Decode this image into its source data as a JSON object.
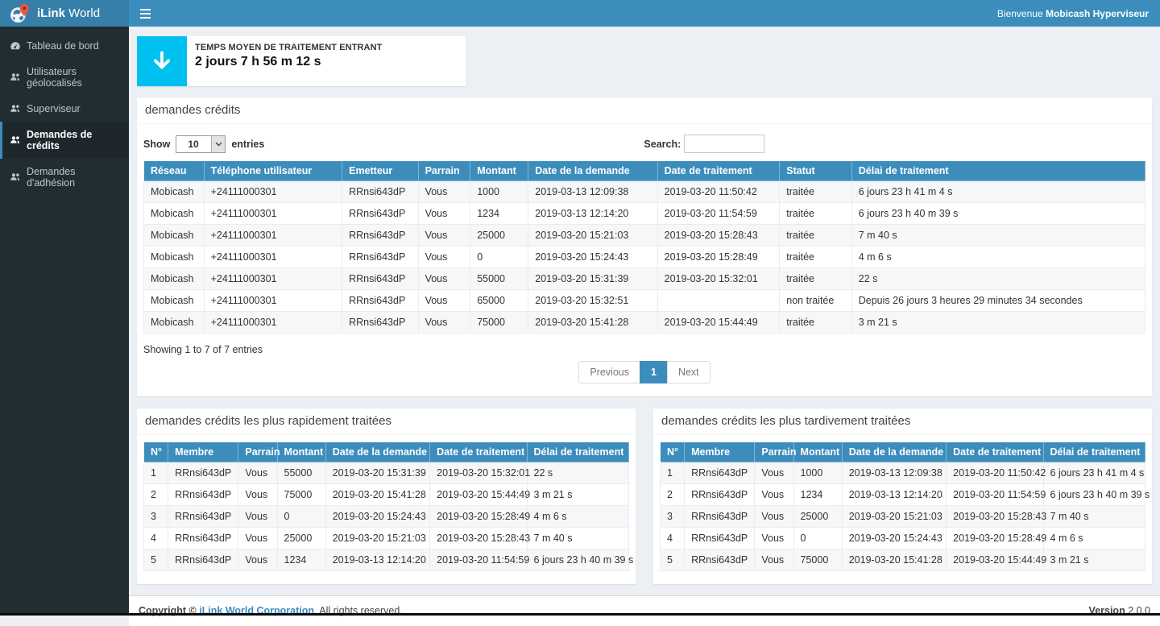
{
  "colors": {
    "navbar": "#3c8dbc",
    "logo_bg": "#367fa9",
    "sidebar_bg": "#222d32",
    "info_icon_bg": "#00c0ef",
    "table_header_bg": "#3c8dbc",
    "pin_red": "#e8573f"
  },
  "brand": {
    "bold": "iLink",
    "light": " World",
    "logo_icon": "globe-pin-icon"
  },
  "navbar": {
    "menu_icon": "hamburger-icon",
    "welcome_prefix": "Bienvenue ",
    "welcome_user": "Mobicash Hyperviseur"
  },
  "sidebar": {
    "items": [
      {
        "label": "Tableau de bord",
        "icon": "dashboard-icon",
        "active": false
      },
      {
        "label": "Utilisateurs géolocalisés",
        "icon": "users-icon",
        "active": false
      },
      {
        "label": "Superviseur",
        "icon": "users-icon",
        "active": false
      },
      {
        "label": "Demandes de crédits",
        "icon": "users-icon",
        "active": true
      },
      {
        "label": "Demandes d'adhésion",
        "icon": "users-icon",
        "active": false
      }
    ]
  },
  "stat_card": {
    "icon": "arrow-down-icon",
    "title": "TEMPS MOYEN DE TRAITEMENT ENTRANT",
    "value": "2 jours 7 h 56 m 12 s"
  },
  "credits_panel": {
    "title": "demandes crédits",
    "show_label": "Show",
    "page_size": "10",
    "entries_label": "entries",
    "search_label": "Search:",
    "search_value": "",
    "columns": [
      "Réseau",
      "Téléphone utilisateur",
      "Emetteur",
      "Parrain",
      "Montant",
      "Date de la demande",
      "Date de traitement",
      "Statut",
      "Délai de traitement"
    ],
    "rows": [
      [
        "Mobicash",
        "+24111000301",
        "RRnsi643dP",
        "Vous",
        "1000",
        "2019-03-13 12:09:38",
        "2019-03-20 11:50:42",
        "traitée",
        "6 jours 23 h 41 m 4 s"
      ],
      [
        "Mobicash",
        "+24111000301",
        "RRnsi643dP",
        "Vous",
        "1234",
        "2019-03-13 12:14:20",
        "2019-03-20 11:54:59",
        "traitée",
        "6 jours 23 h 40 m 39 s"
      ],
      [
        "Mobicash",
        "+24111000301",
        "RRnsi643dP",
        "Vous",
        "25000",
        "2019-03-20 15:21:03",
        "2019-03-20 15:28:43",
        "traitée",
        "7 m 40 s"
      ],
      [
        "Mobicash",
        "+24111000301",
        "RRnsi643dP",
        "Vous",
        "0",
        "2019-03-20 15:24:43",
        "2019-03-20 15:28:49",
        "traitée",
        "4 m 6 s"
      ],
      [
        "Mobicash",
        "+24111000301",
        "RRnsi643dP",
        "Vous",
        "55000",
        "2019-03-20 15:31:39",
        "2019-03-20 15:32:01",
        "traitée",
        "22 s"
      ],
      [
        "Mobicash",
        "+24111000301",
        "RRnsi643dP",
        "Vous",
        "65000",
        "2019-03-20 15:32:51",
        "",
        "non traitée",
        "Depuis 26 jours 3 heures 29 minutes 34 secondes"
      ],
      [
        "Mobicash",
        "+24111000301",
        "RRnsi643dP",
        "Vous",
        "75000",
        "2019-03-20 15:41:28",
        "2019-03-20 15:44:49",
        "traitée",
        "3 m 21 s"
      ]
    ],
    "info": "Showing 1 to 7 of 7 entries",
    "pagination": {
      "previous": "Previous",
      "page": "1",
      "next": "Next"
    }
  },
  "fastest_panel": {
    "title": "demandes crédits les plus rapidement traitées",
    "columns": [
      "N°",
      "Membre",
      "Parrain",
      "Montant",
      "Date de la demande",
      "Date de traitement",
      "Délai de traitement"
    ],
    "rows": [
      [
        "1",
        "RRnsi643dP",
        "Vous",
        "55000",
        "2019-03-20 15:31:39",
        "2019-03-20 15:32:01",
        "22 s"
      ],
      [
        "2",
        "RRnsi643dP",
        "Vous",
        "75000",
        "2019-03-20 15:41:28",
        "2019-03-20 15:44:49",
        "3 m 21 s"
      ],
      [
        "3",
        "RRnsi643dP",
        "Vous",
        "0",
        "2019-03-20 15:24:43",
        "2019-03-20 15:28:49",
        "4 m 6 s"
      ],
      [
        "4",
        "RRnsi643dP",
        "Vous",
        "25000",
        "2019-03-20 15:21:03",
        "2019-03-20 15:28:43",
        "7 m 40 s"
      ],
      [
        "5",
        "RRnsi643dP",
        "Vous",
        "1234",
        "2019-03-13 12:14:20",
        "2019-03-20 11:54:59",
        "6 jours 23 h 40 m 39 s"
      ]
    ]
  },
  "latest_panel": {
    "title": "demandes crédits les plus tardivement traitées",
    "columns": [
      "N°",
      "Membre",
      "Parrain",
      "Montant",
      "Date de la demande",
      "Date de traitement",
      "Délai de traitement"
    ],
    "rows": [
      [
        "1",
        "RRnsi643dP",
        "Vous",
        "1000",
        "2019-03-13 12:09:38",
        "2019-03-20 11:50:42",
        "6 jours 23 h 41 m 4 s"
      ],
      [
        "2",
        "RRnsi643dP",
        "Vous",
        "1234",
        "2019-03-13 12:14:20",
        "2019-03-20 11:54:59",
        "6 jours 23 h 40 m 39 s"
      ],
      [
        "3",
        "RRnsi643dP",
        "Vous",
        "25000",
        "2019-03-20 15:21:03",
        "2019-03-20 15:28:43",
        "7 m 40 s"
      ],
      [
        "4",
        "RRnsi643dP",
        "Vous",
        "0",
        "2019-03-20 15:24:43",
        "2019-03-20 15:28:49",
        "4 m 6 s"
      ],
      [
        "5",
        "RRnsi643dP",
        "Vous",
        "75000",
        "2019-03-20 15:41:28",
        "2019-03-20 15:44:49",
        "3 m 21 s"
      ]
    ]
  },
  "footer": {
    "copyright_prefix": "Copyright © ",
    "company_link": "iLink World Corporation",
    "copyright_suffix": ". All rights reserved.",
    "version_label": "Version",
    "version_value": " 2.0.0"
  }
}
